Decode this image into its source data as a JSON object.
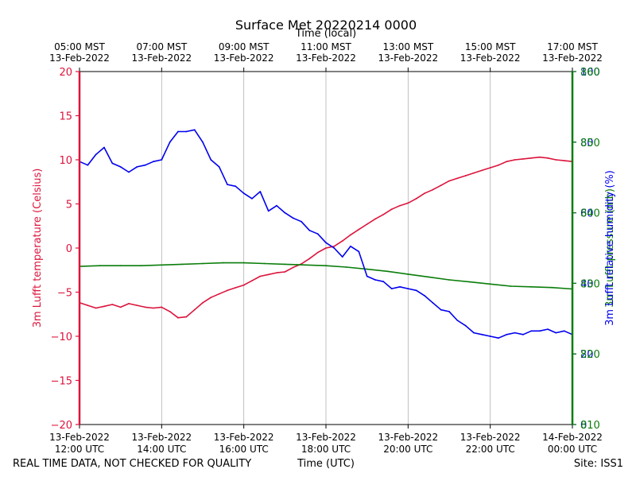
{
  "figure": {
    "title": "Surface Met 20220214 0000",
    "footer_left": "REAL TIME DATA, NOT CHECKED FOR QUALITY",
    "footer_right": "Site: ISS1"
  },
  "colors": {
    "temperature": "#dc143c",
    "pressure": "#0a7d0a",
    "humidity": "#0000ee",
    "grid": "#b0b0b0"
  },
  "chart_data": {
    "type": "line",
    "xlabel": "Time (UTC)",
    "x2label": "Time (local)",
    "xlim_hours": [
      12.0,
      24.0
    ],
    "x_ticks": [
      {
        "h": 12,
        "utc": [
          "13-Feb-2022",
          "12:00 UTC"
        ],
        "local": [
          "05:00 MST",
          "13-Feb-2022"
        ]
      },
      {
        "h": 14,
        "utc": [
          "13-Feb-2022",
          "14:00 UTC"
        ],
        "local": [
          "07:00 MST",
          "13-Feb-2022"
        ]
      },
      {
        "h": 16,
        "utc": [
          "13-Feb-2022",
          "16:00 UTC"
        ],
        "local": [
          "09:00 MST",
          "13-Feb-2022"
        ]
      },
      {
        "h": 18,
        "utc": [
          "13-Feb-2022",
          "18:00 UTC"
        ],
        "local": [
          "11:00 MST",
          "13-Feb-2022"
        ]
      },
      {
        "h": 20,
        "utc": [
          "13-Feb-2022",
          "20:00 UTC"
        ],
        "local": [
          "13:00 MST",
          "13-Feb-2022"
        ]
      },
      {
        "h": 22,
        "utc": [
          "13-Feb-2022",
          "22:00 UTC"
        ],
        "local": [
          "15:00 MST",
          "13-Feb-2022"
        ]
      },
      {
        "h": 24,
        "utc": [
          "14-Feb-2022",
          "00:00 UTC"
        ],
        "local": [
          "17:00 MST",
          "13-Feb-2022"
        ]
      }
    ],
    "grid": true,
    "axes": [
      {
        "id": "temp",
        "label": "3m Lufft temperature (Celsius)",
        "side": "left",
        "color": "#dc143c",
        "ylim": [
          -20,
          20
        ],
        "ticks": [
          -20,
          -15,
          -10,
          -5,
          0,
          5,
          10,
          15,
          20
        ]
      },
      {
        "id": "pres",
        "label": "3m Lufft pressure (mb)",
        "side": "right",
        "color": "#0a7d0a",
        "ylim": [
          810,
          860
        ],
        "ticks": [
          810,
          820,
          830,
          840,
          850,
          860
        ]
      },
      {
        "id": "rh",
        "label": "3m Lufft relative humidity (%)",
        "side": "right",
        "color": "#0000ee",
        "ylim": [
          0,
          100
        ],
        "ticks": [
          0,
          20,
          40,
          60,
          80,
          100
        ]
      }
    ],
    "series": [
      {
        "name": "3m Lufft temperature (Celsius)",
        "axis": "temp",
        "color": "#dc143c",
        "x": [
          12.0,
          12.2,
          12.4,
          12.6,
          12.8,
          13.0,
          13.2,
          13.4,
          13.6,
          13.8,
          14.0,
          14.2,
          14.4,
          14.6,
          14.8,
          15.0,
          15.2,
          15.4,
          15.6,
          15.8,
          16.0,
          16.2,
          16.4,
          16.6,
          16.8,
          17.0,
          17.2,
          17.4,
          17.6,
          17.8,
          18.0,
          18.2,
          18.4,
          18.6,
          18.8,
          19.0,
          19.2,
          19.4,
          19.6,
          19.8,
          20.0,
          20.2,
          20.4,
          20.6,
          20.8,
          21.0,
          21.2,
          21.4,
          21.6,
          21.8,
          22.0,
          22.2,
          22.4,
          22.6,
          22.8,
          23.0,
          23.2,
          23.4,
          23.6,
          23.8,
          24.0
        ],
        "y": [
          -6.2,
          -6.5,
          -6.8,
          -6.6,
          -6.4,
          -6.7,
          -6.3,
          -6.5,
          -6.7,
          -6.8,
          -6.7,
          -7.2,
          -7.9,
          -7.8,
          -7.0,
          -6.2,
          -5.6,
          -5.2,
          -4.8,
          -4.5,
          -4.2,
          -3.7,
          -3.2,
          -3.0,
          -2.8,
          -2.7,
          -2.2,
          -1.8,
          -1.2,
          -0.5,
          0.0,
          0.2,
          0.8,
          1.5,
          2.1,
          2.7,
          3.3,
          3.8,
          4.4,
          4.8,
          5.1,
          5.6,
          6.2,
          6.6,
          7.1,
          7.6,
          7.9,
          8.2,
          8.5,
          8.8,
          9.1,
          9.4,
          9.8,
          10.0,
          10.1,
          10.2,
          10.3,
          10.2,
          10.0,
          9.9,
          9.8
        ]
      },
      {
        "name": "3m Lufft pressure (mb)",
        "axis": "pres",
        "color": "#0a7d0a",
        "x": [
          12.0,
          12.5,
          13.0,
          13.5,
          14.0,
          14.5,
          15.0,
          15.5,
          16.0,
          16.5,
          17.0,
          17.5,
          18.0,
          18.5,
          19.0,
          19.5,
          20.0,
          20.5,
          21.0,
          21.5,
          22.0,
          22.5,
          23.0,
          23.5,
          24.0
        ],
        "y": [
          832.4,
          832.5,
          832.5,
          832.5,
          832.6,
          832.7,
          832.8,
          832.9,
          832.9,
          832.8,
          832.7,
          832.6,
          832.5,
          832.3,
          832.0,
          831.7,
          831.3,
          830.9,
          830.5,
          830.2,
          829.9,
          829.6,
          829.5,
          829.4,
          829.2
        ]
      },
      {
        "name": "3m Lufft relative humidity (%)",
        "axis": "rh",
        "color": "#0000ee",
        "x": [
          12.0,
          12.2,
          12.4,
          12.6,
          12.8,
          13.0,
          13.2,
          13.4,
          13.6,
          13.8,
          14.0,
          14.2,
          14.4,
          14.6,
          14.8,
          15.0,
          15.2,
          15.4,
          15.6,
          15.8,
          16.0,
          16.2,
          16.4,
          16.6,
          16.8,
          17.0,
          17.2,
          17.4,
          17.6,
          17.8,
          18.0,
          18.2,
          18.4,
          18.6,
          18.8,
          19.0,
          19.2,
          19.4,
          19.6,
          19.8,
          20.0,
          20.2,
          20.4,
          20.6,
          20.8,
          21.0,
          21.2,
          21.4,
          21.6,
          21.8,
          22.0,
          22.2,
          22.4,
          22.6,
          22.8,
          23.0,
          23.2,
          23.4,
          23.6,
          23.8,
          24.0
        ],
        "y": [
          74.5,
          73.5,
          76.5,
          78.5,
          74.0,
          73.0,
          71.5,
          73.0,
          73.5,
          74.5,
          75.0,
          80.0,
          83.0,
          83.0,
          83.5,
          80.0,
          75.0,
          73.0,
          68.0,
          67.5,
          65.5,
          64.0,
          66.0,
          60.5,
          62.0,
          60.0,
          58.5,
          57.5,
          55.0,
          54.0,
          51.5,
          50.0,
          47.5,
          50.5,
          49.0,
          42.0,
          41.0,
          40.5,
          38.5,
          39.0,
          38.5,
          38.0,
          36.5,
          34.5,
          32.5,
          32.0,
          29.5,
          28.0,
          26.0,
          25.5,
          25.0,
          24.5,
          25.5,
          26.0,
          25.5,
          26.5,
          26.5,
          27.0,
          26.0,
          26.5,
          25.5
        ]
      }
    ]
  }
}
